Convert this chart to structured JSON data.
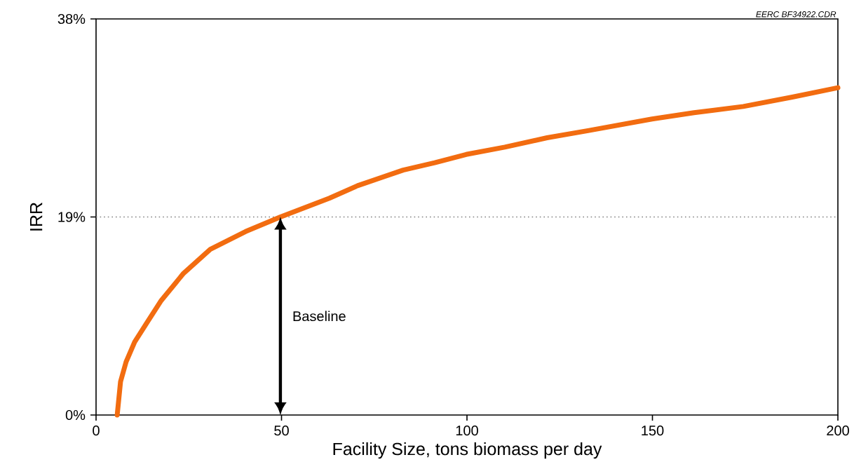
{
  "chart_data": {
    "type": "line",
    "xlabel": "Facility Size, tons biomass per day",
    "ylabel": "IRR",
    "xlim": [
      0,
      200
    ],
    "xticks": [
      0,
      50,
      100,
      150,
      200
    ],
    "ylim": [
      0,
      38
    ],
    "yticks": [
      {
        "value": 0,
        "label": "0%"
      },
      {
        "value": 19,
        "label": "19%"
      },
      {
        "value": 38,
        "label": "38%"
      }
    ],
    "grid": false,
    "marker": "none",
    "line_style": "solid",
    "series": [
      {
        "color": "#f26c10",
        "x": [
          5.7,
          6.6,
          8.1,
          10.4,
          13.8,
          17.6,
          23.6,
          30.8,
          40.3,
          49.7,
          62.9,
          70.5,
          82.8,
          91.3,
          99.8,
          110.2,
          121.6,
          132.9,
          149.9,
          161.2,
          174.5,
          187.7,
          200
        ],
        "values": [
          0,
          3.2,
          5.1,
          7.0,
          8.9,
          11.0,
          13.6,
          15.9,
          17.6,
          19.0,
          20.8,
          22.0,
          23.5,
          24.2,
          25.0,
          25.7,
          26.6,
          27.3,
          28.4,
          29.0,
          29.6,
          30.5,
          31.4
        ]
      }
    ],
    "ref_lines": [
      {
        "axis": "y",
        "value": 19,
        "color": "#808080",
        "line_style": "dotted"
      }
    ],
    "annotations": [
      "EERC BF34922.CDR",
      "Baseline"
    ]
  }
}
